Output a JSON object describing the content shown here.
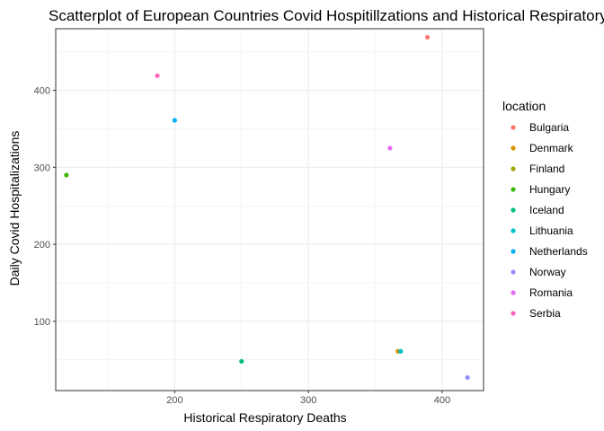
{
  "chart_data": {
    "type": "scatter",
    "title": "Scatterplot of European Countries Covid Hospitillzations and Historical Respiratory Deaths",
    "xlabel": "Historical Respiratory Deaths",
    "ylabel": "Daily Covid Hospitalizations",
    "xlim": [
      111,
      431
    ],
    "ylim": [
      10,
      480
    ],
    "x_ticks": [
      200,
      300,
      400
    ],
    "y_ticks": [
      100,
      200,
      300,
      400
    ],
    "grid": true,
    "legend": {
      "title": "location",
      "position": "right"
    },
    "series": [
      {
        "name": "Bulgaria",
        "color": "#F8766D",
        "points": [
          {
            "x": 389,
            "y": 469
          }
        ]
      },
      {
        "name": "Denmark",
        "color": "#D89000",
        "points": [
          {
            "x": 367,
            "y": 61
          }
        ]
      },
      {
        "name": "Finland",
        "color": "#A3A500",
        "points": []
      },
      {
        "name": "Hungary",
        "color": "#39B600",
        "points": [
          {
            "x": 119,
            "y": 290
          }
        ]
      },
      {
        "name": "Iceland",
        "color": "#00BF7D",
        "points": [
          {
            "x": 250,
            "y": 48
          }
        ]
      },
      {
        "name": "Lithuania",
        "color": "#00BFC4",
        "points": [
          {
            "x": 369,
            "y": 61
          }
        ]
      },
      {
        "name": "Netherlands",
        "color": "#00B0F6",
        "points": [
          {
            "x": 200,
            "y": 361
          }
        ]
      },
      {
        "name": "Norway",
        "color": "#9590FF",
        "points": [
          {
            "x": 419,
            "y": 27
          }
        ]
      },
      {
        "name": "Romania",
        "color": "#E76BF3",
        "points": [
          {
            "x": 361,
            "y": 325
          }
        ]
      },
      {
        "name": "Serbia",
        "color": "#FF62BC",
        "points": [
          {
            "x": 187,
            "y": 419
          }
        ]
      }
    ]
  }
}
